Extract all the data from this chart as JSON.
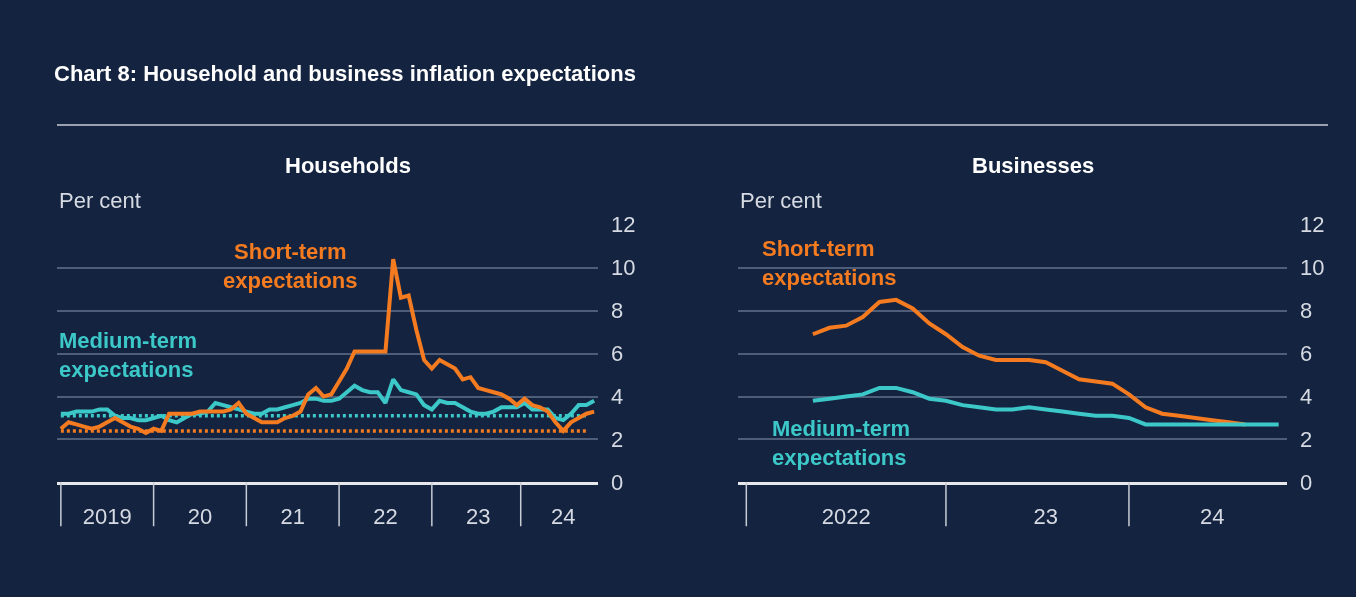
{
  "chart_data": [
    {
      "type": "line",
      "title": "Chart 8: Household and business inflation expectations",
      "subtitle": "Households",
      "ylabel": "Per cent",
      "ylim": [
        0,
        12
      ],
      "yticks": [
        0,
        2,
        4,
        6,
        8,
        10,
        12
      ],
      "grid": "y",
      "categories": [
        null,
        null,
        null,
        null,
        null,
        null,
        "2019",
        null,
        null,
        null,
        null,
        null,
        null,
        null,
        null,
        null,
        null,
        null,
        "20",
        null,
        null,
        null,
        null,
        null,
        null,
        null,
        null,
        null,
        null,
        null,
        "21",
        null,
        null,
        null,
        null,
        null,
        null,
        null,
        null,
        null,
        null,
        null,
        "22",
        null,
        null,
        null,
        null,
        null,
        null,
        null,
        null,
        null,
        null,
        null,
        "23",
        null,
        null,
        null,
        null,
        null,
        null,
        null,
        null,
        null,
        null,
        "24",
        null,
        null,
        null,
        null
      ],
      "series": [
        {
          "name": null,
          "color": "#3cc8c8",
          "line_style": "dotted",
          "values": [
            3.1,
            3.1,
            3.1,
            3.1,
            3.1,
            3.1,
            3.1,
            3.1,
            3.1,
            3.1,
            3.1,
            3.1,
            3.1,
            3.1,
            3.1,
            3.1,
            3.1,
            3.1,
            3.1,
            3.1,
            3.1,
            3.1,
            3.1,
            3.1,
            3.1,
            3.1,
            3.1,
            3.1,
            3.1,
            3.1,
            3.1,
            3.1,
            3.1,
            3.1,
            3.1,
            3.1,
            3.1,
            3.1,
            3.1,
            3.1,
            3.1,
            3.1,
            3.1,
            3.1,
            3.1,
            3.1,
            3.1,
            3.1,
            3.1,
            3.1,
            3.1,
            3.1,
            3.1,
            3.1,
            3.1,
            3.1,
            3.1,
            3.1,
            3.1,
            3.1,
            3.1,
            3.1,
            3.1,
            3.1,
            3.1,
            3.1,
            3.1,
            3.1,
            3.1,
            null
          ]
        },
        {
          "name": null,
          "color": "#f47b20",
          "line_style": "dotted",
          "values": [
            2.4,
            2.4,
            2.4,
            2.4,
            2.4,
            2.4,
            2.4,
            2.4,
            2.4,
            2.4,
            2.4,
            2.4,
            2.4,
            2.4,
            2.4,
            2.4,
            2.4,
            2.4,
            2.4,
            2.4,
            2.4,
            2.4,
            2.4,
            2.4,
            2.4,
            2.4,
            2.4,
            2.4,
            2.4,
            2.4,
            2.4,
            2.4,
            2.4,
            2.4,
            2.4,
            2.4,
            2.4,
            2.4,
            2.4,
            2.4,
            2.4,
            2.4,
            2.4,
            2.4,
            2.4,
            2.4,
            2.4,
            2.4,
            2.4,
            2.4,
            2.4,
            2.4,
            2.4,
            2.4,
            2.4,
            2.4,
            2.4,
            2.4,
            2.4,
            2.4,
            2.4,
            2.4,
            2.4,
            2.4,
            2.4,
            2.4,
            2.4,
            2.4,
            2.4,
            null
          ]
        },
        {
          "name": "Medium-term expectations",
          "color": "#3cc8c8",
          "values": [
            3.2,
            3.2,
            3.3,
            3.3,
            3.3,
            3.4,
            3.4,
            3.1,
            3.0,
            3.0,
            2.9,
            2.9,
            3.0,
            3.1,
            2.9,
            2.8,
            3.0,
            3.2,
            3.2,
            3.3,
            3.7,
            3.6,
            3.5,
            3.4,
            3.3,
            3.2,
            3.2,
            3.4,
            3.4,
            3.5,
            3.6,
            3.7,
            3.9,
            3.9,
            3.8,
            3.8,
            3.9,
            4.2,
            4.5,
            4.3,
            4.2,
            4.2,
            3.7,
            4.8,
            4.3,
            4.2,
            4.1,
            3.6,
            3.4,
            3.8,
            3.7,
            3.7,
            3.5,
            3.3,
            3.2,
            3.2,
            3.3,
            3.5,
            3.5,
            3.5,
            3.7,
            3.4,
            3.4,
            3.4,
            3.0,
            2.9,
            3.2,
            3.6,
            3.6,
            3.8
          ]
        },
        {
          "name": "Short-term expectations",
          "color": "#f47b20",
          "values": [
            2.5,
            2.8,
            2.7,
            2.6,
            2.5,
            2.6,
            2.8,
            3.0,
            2.8,
            2.6,
            2.5,
            2.3,
            2.5,
            2.4,
            3.2,
            3.2,
            3.2,
            3.2,
            3.3,
            3.3,
            3.3,
            3.3,
            3.4,
            3.7,
            3.2,
            3.0,
            2.8,
            2.8,
            2.8,
            3.0,
            3.1,
            3.3,
            4.1,
            4.4,
            4.0,
            4.1,
            4.7,
            5.3,
            6.1,
            6.1,
            6.1,
            6.1,
            6.1,
            10.4,
            8.6,
            8.7,
            7.1,
            5.7,
            5.3,
            5.7,
            5.5,
            5.3,
            4.8,
            4.9,
            4.4,
            4.3,
            4.2,
            4.1,
            3.9,
            3.6,
            3.9,
            3.6,
            3.5,
            3.3,
            2.8,
            2.4,
            2.8,
            3.0,
            3.2,
            3.3
          ]
        }
      ]
    },
    {
      "type": "line",
      "subtitle": "Businesses",
      "ylabel": "Per cent",
      "ylim": [
        0,
        12
      ],
      "yticks": [
        0,
        2,
        4,
        6,
        8,
        10,
        12
      ],
      "grid": "y",
      "categories": [
        null,
        null,
        null,
        null,
        null,
        null,
        "2022",
        null,
        null,
        null,
        null,
        null,
        null,
        null,
        null,
        null,
        null,
        null,
        "23",
        null,
        null,
        null,
        null,
        null,
        null,
        null,
        null,
        null,
        "24",
        null,
        null,
        null,
        null
      ],
      "series": [
        {
          "name": "Short-term expectations",
          "color": "#f47b20",
          "values": [
            null,
            null,
            null,
            null,
            6.9,
            7.2,
            7.3,
            7.7,
            8.4,
            8.5,
            8.1,
            7.4,
            6.9,
            6.3,
            5.9,
            5.7,
            5.7,
            5.7,
            5.6,
            5.2,
            4.8,
            4.7,
            4.6,
            4.1,
            3.5,
            3.2,
            3.1,
            3.0,
            2.9,
            2.8,
            2.7,
            null,
            null
          ]
        },
        {
          "name": "Medium-term expectations",
          "color": "#3cc8c8",
          "values": [
            null,
            null,
            null,
            null,
            3.8,
            3.9,
            4.0,
            4.1,
            4.4,
            4.4,
            4.2,
            3.9,
            3.8,
            3.6,
            3.5,
            3.4,
            3.4,
            3.5,
            3.4,
            3.3,
            3.2,
            3.1,
            3.1,
            3.0,
            2.7,
            2.7,
            2.7,
            2.7,
            2.7,
            2.7,
            2.7,
            2.7,
            2.7
          ]
        }
      ]
    }
  ]
}
